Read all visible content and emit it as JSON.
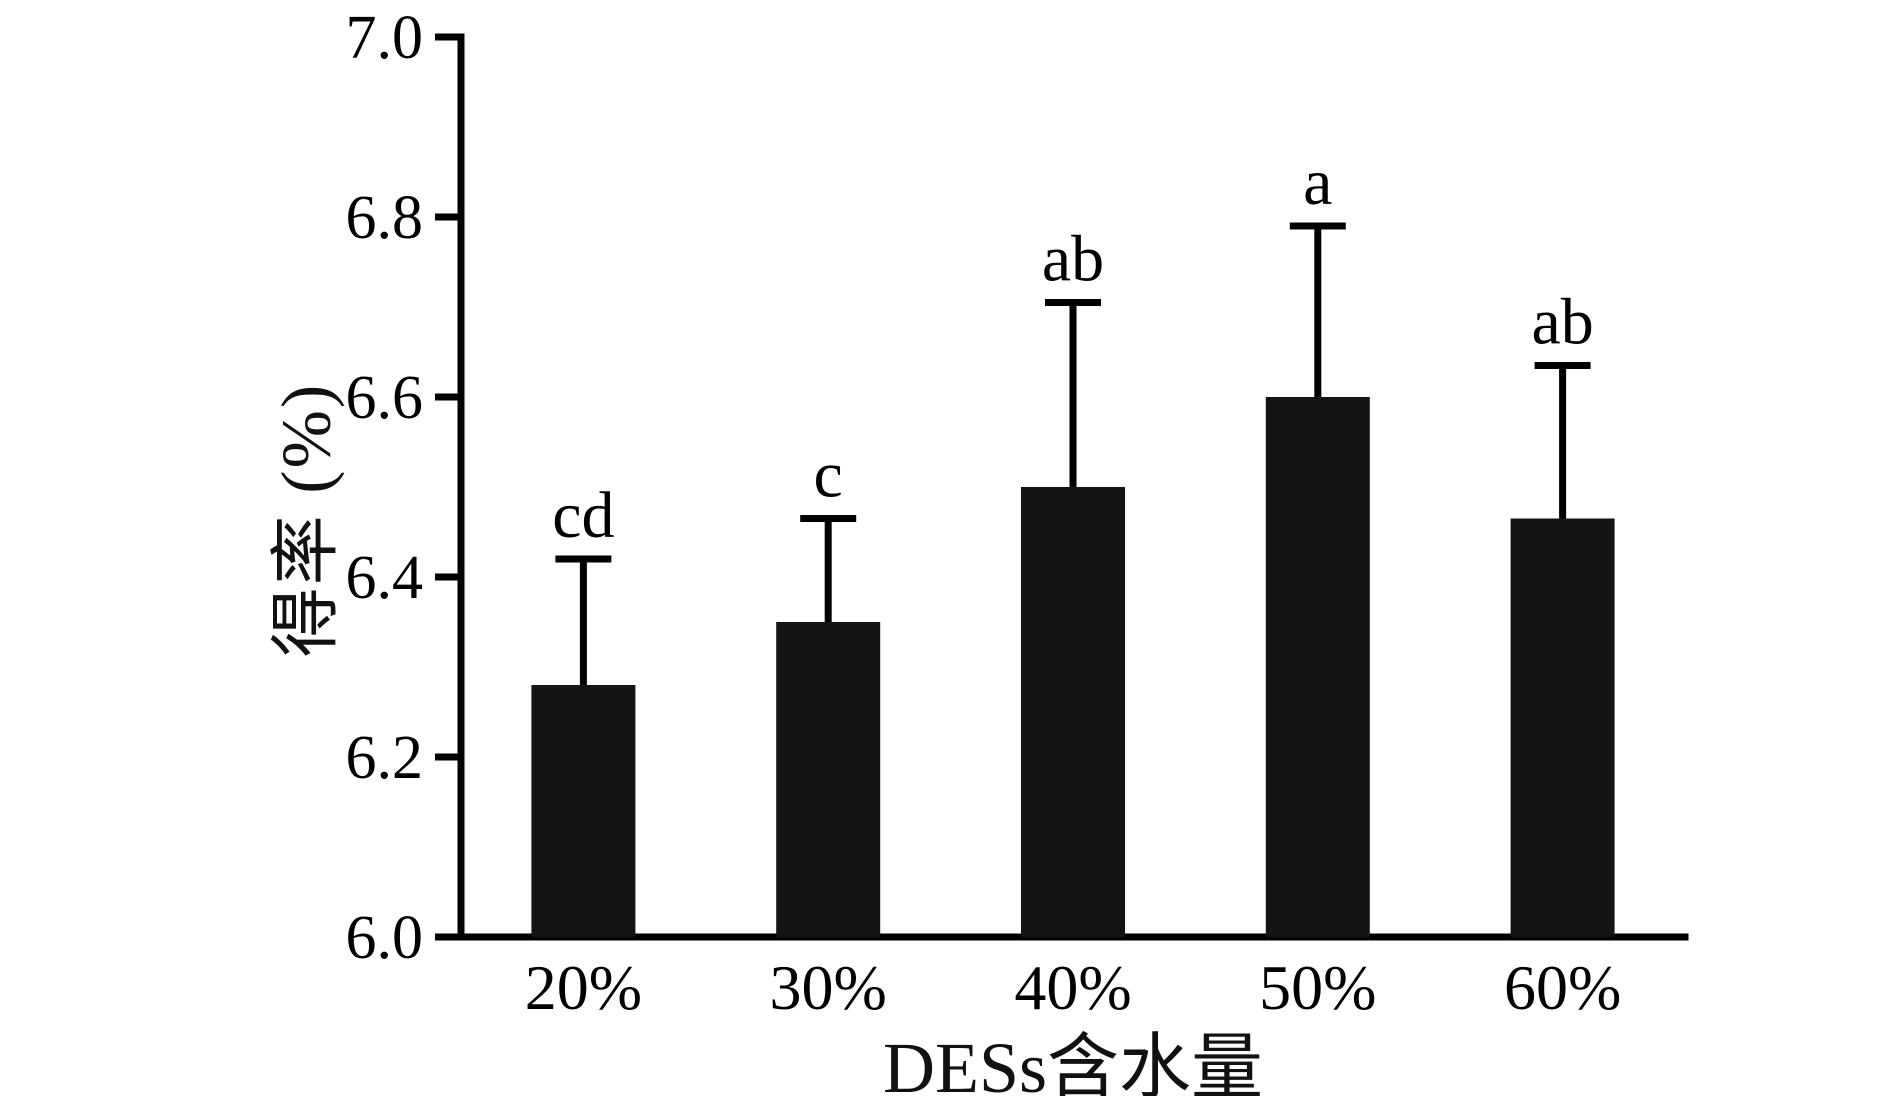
{
  "chart_data": {
    "type": "bar",
    "title": "",
    "xlabel": "DESs含水量",
    "ylabel": "得率 (%)",
    "categories": [
      "20%",
      "30%",
      "40%",
      "50%",
      "60%"
    ],
    "values": [
      6.28,
      6.35,
      6.5,
      6.6,
      6.465
    ],
    "errors_plus": [
      0.14,
      0.115,
      0.205,
      0.19,
      0.17
    ],
    "sig_letters": [
      "cd",
      "c",
      "ab",
      "a",
      "ab"
    ],
    "ylim": [
      6.0,
      7.0
    ],
    "yticks": [
      6.0,
      6.2,
      6.4,
      6.6,
      6.8,
      7.0
    ],
    "ytick_format_decimals": 1,
    "grid": false,
    "legend": false,
    "bar_color": "#141414",
    "axis_color": "#000000",
    "background_color": "#ffffff"
  }
}
